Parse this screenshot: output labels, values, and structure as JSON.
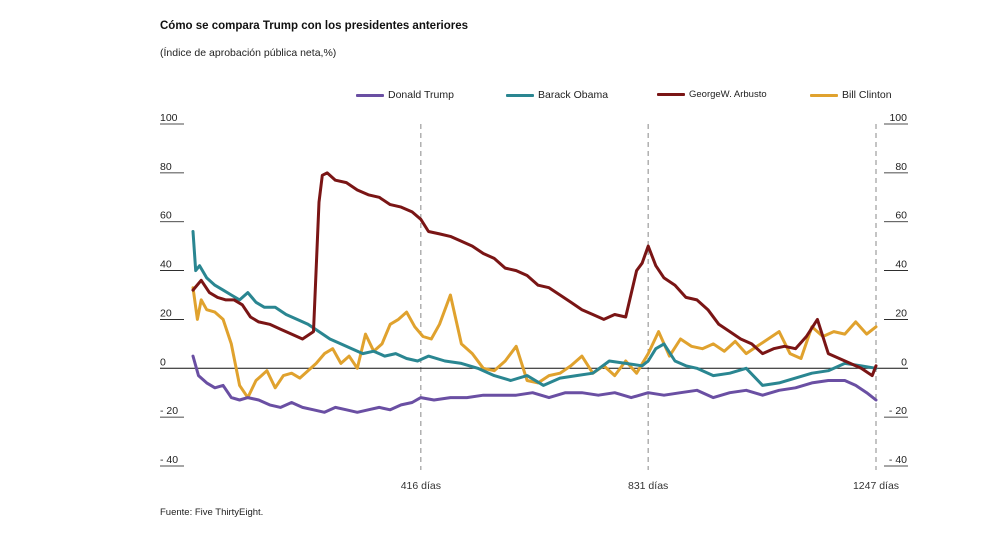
{
  "header": {
    "title": "Cómo se compara Trump con los presidentes anteriores",
    "subtitle": "(Índice de aprobación pública neta,%)"
  },
  "source": "Fuente: Five ThirtyEight.",
  "colors": {
    "trump": "#6a4fa3",
    "obama": "#2a8691",
    "bush": "#7a1515",
    "clinton": "#e0a22e",
    "axis": "#111111",
    "grid": "#888888"
  },
  "chart_data": {
    "type": "line",
    "title": "Cómo se compara Trump con los presidentes anteriores",
    "subtitle": "(Índice de aprobación pública neta,%)",
    "xlabel": "",
    "ylabel": "",
    "xlim": [
      0,
      1247
    ],
    "ylim": [
      -40,
      100
    ],
    "yticks": [
      {
        "value": 100,
        "label": "100"
      },
      {
        "value": 80,
        "label": "80"
      },
      {
        "value": 60,
        "label": "60"
      },
      {
        "value": 40,
        "label": "40"
      },
      {
        "value": 20,
        "label": "20"
      },
      {
        "value": 0,
        "label": "0"
      },
      {
        "value": -20,
        "label": "- 20"
      },
      {
        "value": -40,
        "label": "- 40"
      }
    ],
    "xticks": [
      {
        "value": 416,
        "label": "416 días"
      },
      {
        "value": 831,
        "label": "831 días"
      },
      {
        "value": 1247,
        "label": "1247 días"
      }
    ],
    "legend_position": "top",
    "series": [
      {
        "name": "Donald Trump",
        "key": "trump",
        "x": [
          0,
          10,
          25,
          40,
          55,
          70,
          85,
          100,
          120,
          140,
          160,
          180,
          200,
          220,
          240,
          260,
          280,
          300,
          320,
          340,
          360,
          380,
          400,
          416,
          440,
          470,
          500,
          530,
          560,
          590,
          620,
          650,
          680,
          710,
          740,
          770,
          800,
          831,
          860,
          890,
          920,
          950,
          980,
          1010,
          1040,
          1070,
          1100,
          1130,
          1160,
          1190,
          1210,
          1230,
          1247
        ],
        "values": [
          5,
          -3,
          -6,
          -8,
          -7,
          -12,
          -13,
          -12,
          -13,
          -15,
          -16,
          -14,
          -16,
          -17,
          -18,
          -16,
          -17,
          -18,
          -17,
          -16,
          -17,
          -15,
          -14,
          -12,
          -13,
          -12,
          -12,
          -11,
          -11,
          -11,
          -10,
          -12,
          -10,
          -10,
          -11,
          -10,
          -12,
          -10,
          -11,
          -10,
          -9,
          -12,
          -10,
          -9,
          -11,
          -9,
          -8,
          -6,
          -5,
          -5,
          -7,
          -10,
          -13
        ]
      },
      {
        "name": "Barack Obama",
        "key": "obama",
        "x": [
          0,
          5,
          12,
          25,
          40,
          55,
          70,
          85,
          100,
          115,
          130,
          150,
          170,
          190,
          210,
          230,
          250,
          270,
          290,
          310,
          330,
          350,
          370,
          390,
          410,
          430,
          460,
          490,
          520,
          550,
          580,
          610,
          640,
          670,
          700,
          730,
          760,
          790,
          820,
          831,
          845,
          860,
          880,
          900,
          920,
          950,
          980,
          1010,
          1040,
          1070,
          1100,
          1130,
          1160,
          1190,
          1220,
          1247
        ],
        "values": [
          56,
          40,
          42,
          37,
          34,
          32,
          30,
          28,
          31,
          27,
          25,
          25,
          22,
          20,
          18,
          15,
          12,
          10,
          8,
          6,
          7,
          5,
          6,
          4,
          3,
          5,
          3,
          2,
          0,
          -3,
          -5,
          -3,
          -7,
          -4,
          -3,
          -2,
          3,
          2,
          1,
          3,
          8,
          10,
          3,
          1,
          0,
          -3,
          -2,
          0,
          -7,
          -6,
          -4,
          -2,
          -1,
          2,
          1,
          0
        ]
      },
      {
        "name": "GeorgeW. Arbusto",
        "key": "bush",
        "x": [
          0,
          15,
          30,
          45,
          60,
          75,
          90,
          105,
          120,
          140,
          160,
          180,
          200,
          220,
          230,
          236,
          245,
          260,
          280,
          300,
          320,
          340,
          360,
          380,
          400,
          416,
          430,
          450,
          470,
          490,
          510,
          530,
          550,
          570,
          590,
          610,
          630,
          650,
          670,
          690,
          710,
          730,
          750,
          770,
          790,
          810,
          820,
          831,
          845,
          860,
          880,
          900,
          920,
          940,
          960,
          980,
          1000,
          1020,
          1040,
          1060,
          1080,
          1100,
          1120,
          1140,
          1160,
          1180,
          1200,
          1220,
          1240,
          1247
        ],
        "values": [
          32,
          36,
          31,
          29,
          28,
          28,
          26,
          21,
          19,
          18,
          16,
          14,
          12,
          15,
          68,
          79,
          80,
          77,
          76,
          73,
          71,
          70,
          67,
          66,
          64,
          61,
          56,
          55,
          54,
          52,
          50,
          47,
          45,
          41,
          40,
          38,
          34,
          33,
          30,
          27,
          24,
          22,
          20,
          22,
          21,
          40,
          43,
          50,
          42,
          37,
          34,
          29,
          28,
          24,
          18,
          15,
          12,
          10,
          6,
          8,
          9,
          8,
          13,
          20,
          6,
          4,
          2,
          0,
          -3,
          1
        ]
      },
      {
        "name": "Bill Clinton",
        "key": "clinton",
        "x": [
          0,
          8,
          15,
          25,
          40,
          55,
          70,
          85,
          100,
          115,
          125,
          135,
          150,
          165,
          180,
          195,
          210,
          225,
          240,
          255,
          270,
          285,
          300,
          315,
          330,
          345,
          360,
          375,
          390,
          405,
          420,
          435,
          450,
          470,
          490,
          510,
          530,
          550,
          570,
          590,
          610,
          630,
          650,
          670,
          690,
          710,
          730,
          750,
          770,
          790,
          810,
          831,
          850,
          870,
          890,
          910,
          930,
          950,
          970,
          990,
          1010,
          1030,
          1050,
          1070,
          1090,
          1110,
          1130,
          1150,
          1170,
          1190,
          1210,
          1230,
          1247
        ],
        "values": [
          33,
          20,
          28,
          24,
          23,
          20,
          10,
          -7,
          -12,
          -5,
          -3,
          -1,
          -8,
          -3,
          -2,
          -4,
          -1,
          2,
          6,
          8,
          2,
          5,
          0,
          14,
          7,
          10,
          18,
          20,
          23,
          17,
          13,
          12,
          18,
          30,
          10,
          6,
          0,
          -1,
          3,
          9,
          -5,
          -6,
          -3,
          -2,
          1,
          5,
          -2,
          1,
          -3,
          3,
          -2,
          6,
          15,
          5,
          12,
          9,
          8,
          10,
          7,
          11,
          6,
          9,
          12,
          15,
          6,
          4,
          17,
          13,
          15,
          14,
          19,
          14,
          17
        ]
      }
    ]
  }
}
